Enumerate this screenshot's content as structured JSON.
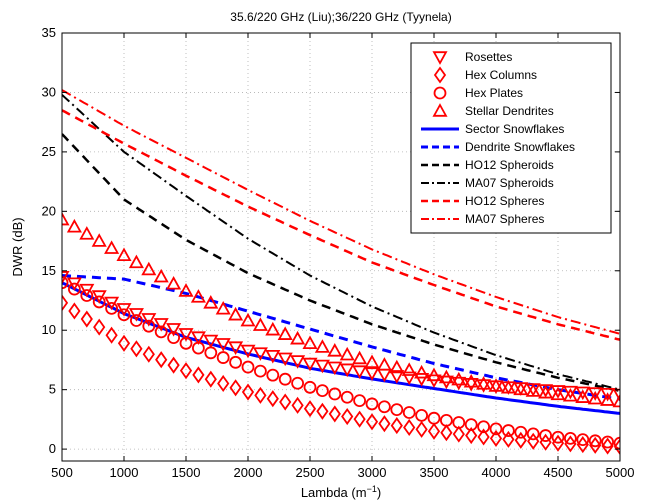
{
  "chart_data": {
    "type": "line",
    "title": "35.6/220 GHz (Liu);36/220 GHz (Tyynela)",
    "xlabel_main": "Lambda (m",
    "xlabel_sup": "−1",
    "xlabel_close": ")",
    "ylabel": "DWR (dB)",
    "xlim": [
      500,
      5000
    ],
    "ylim": [
      -1,
      35
    ],
    "xticks": [
      500,
      1000,
      1500,
      2000,
      2500,
      3000,
      3500,
      4000,
      4500,
      5000
    ],
    "yticks": [
      0,
      5,
      10,
      15,
      20,
      25,
      30,
      35
    ],
    "grid": true,
    "legend_position": "top-right",
    "series": [
      {
        "name": "Rosettes",
        "color": "#ff0000",
        "style": "marker",
        "marker": "triangle-down",
        "x": [
          500,
          1000,
          1500,
          2000,
          2500,
          3000,
          3500,
          4000,
          4500,
          5000
        ],
        "y": [
          14.5,
          11.8,
          9.7,
          8.3,
          7.2,
          6.4,
          5.8,
          5.3,
          4.9,
          4.6
        ]
      },
      {
        "name": "Hex Columns",
        "color": "#ff0000",
        "style": "marker",
        "marker": "diamond",
        "x": [
          500,
          1000,
          1500,
          2000,
          2500,
          3000,
          3500,
          4000,
          4500,
          5000
        ],
        "y": [
          12.3,
          8.9,
          6.6,
          4.8,
          3.4,
          2.3,
          1.5,
          0.9,
          0.5,
          0.2
        ]
      },
      {
        "name": "Hex Plates",
        "color": "#ff0000",
        "style": "marker",
        "marker": "circle",
        "x": [
          500,
          1000,
          1500,
          2000,
          2500,
          3000,
          3500,
          4000,
          4500,
          5000
        ],
        "y": [
          14.0,
          11.3,
          8.9,
          6.9,
          5.2,
          3.8,
          2.6,
          1.7,
          1.0,
          0.5
        ]
      },
      {
        "name": "Stellar Dendrites",
        "color": "#ff0000",
        "style": "marker",
        "marker": "triangle-up",
        "x": [
          500,
          1000,
          1500,
          2000,
          2500,
          3000,
          3500,
          4000,
          4500,
          5000
        ],
        "y": [
          19.3,
          16.3,
          13.3,
          10.8,
          8.9,
          7.3,
          6.2,
          5.3,
          4.6,
          4.0
        ]
      },
      {
        "name": "Sector Snowflakes",
        "color": "#0000ff",
        "style": "solid",
        "width": 3,
        "x": [
          500,
          1000,
          1500,
          2000,
          2500,
          3000,
          3500,
          4000,
          4500,
          5000
        ],
        "y": [
          14.0,
          11.4,
          9.4,
          8.0,
          6.8,
          5.9,
          5.1,
          4.3,
          3.6,
          3.0
        ]
      },
      {
        "name": "Dendrite Snowflakes",
        "color": "#0000ff",
        "style": "dashed",
        "width": 3,
        "x": [
          500,
          1000,
          1500,
          2000,
          2500,
          3000,
          3500,
          4000,
          4500,
          5000
        ],
        "y": [
          14.6,
          14.3,
          13.1,
          11.6,
          10.1,
          8.6,
          7.2,
          6.0,
          5.0,
          4.2
        ]
      },
      {
        "name": "HO12 Spheroids",
        "color": "#000000",
        "style": "dashed",
        "width": 2.5,
        "x": [
          500,
          1000,
          1500,
          2000,
          2500,
          3000,
          3500,
          4000,
          4500,
          5000
        ],
        "y": [
          26.5,
          21.0,
          17.6,
          14.8,
          12.5,
          10.5,
          8.8,
          7.3,
          6.0,
          4.9
        ]
      },
      {
        "name": "MA07 Spheroids",
        "color": "#000000",
        "style": "dashdot",
        "width": 2,
        "x": [
          500,
          1000,
          1500,
          2000,
          2500,
          3000,
          3500,
          4000,
          4500,
          5000
        ],
        "y": [
          29.8,
          25.0,
          21.3,
          17.7,
          14.6,
          12.0,
          9.8,
          7.9,
          6.3,
          5.0
        ]
      },
      {
        "name": "HO12 Spheres",
        "color": "#ff0000",
        "style": "dashed",
        "width": 2.5,
        "x": [
          500,
          1000,
          1500,
          2000,
          2500,
          3000,
          3500,
          4000,
          4500,
          5000
        ],
        "y": [
          28.5,
          25.7,
          23.0,
          20.4,
          18.0,
          15.7,
          13.8,
          12.0,
          10.5,
          9.2
        ]
      },
      {
        "name": "MA07 Spheres",
        "color": "#ff0000",
        "style": "dashdot",
        "width": 2,
        "x": [
          500,
          1000,
          1500,
          2000,
          2500,
          3000,
          3500,
          4000,
          4500,
          5000
        ],
        "y": [
          30.2,
          27.2,
          24.5,
          21.8,
          19.2,
          16.8,
          14.7,
          12.8,
          11.1,
          9.7
        ]
      }
    ]
  }
}
